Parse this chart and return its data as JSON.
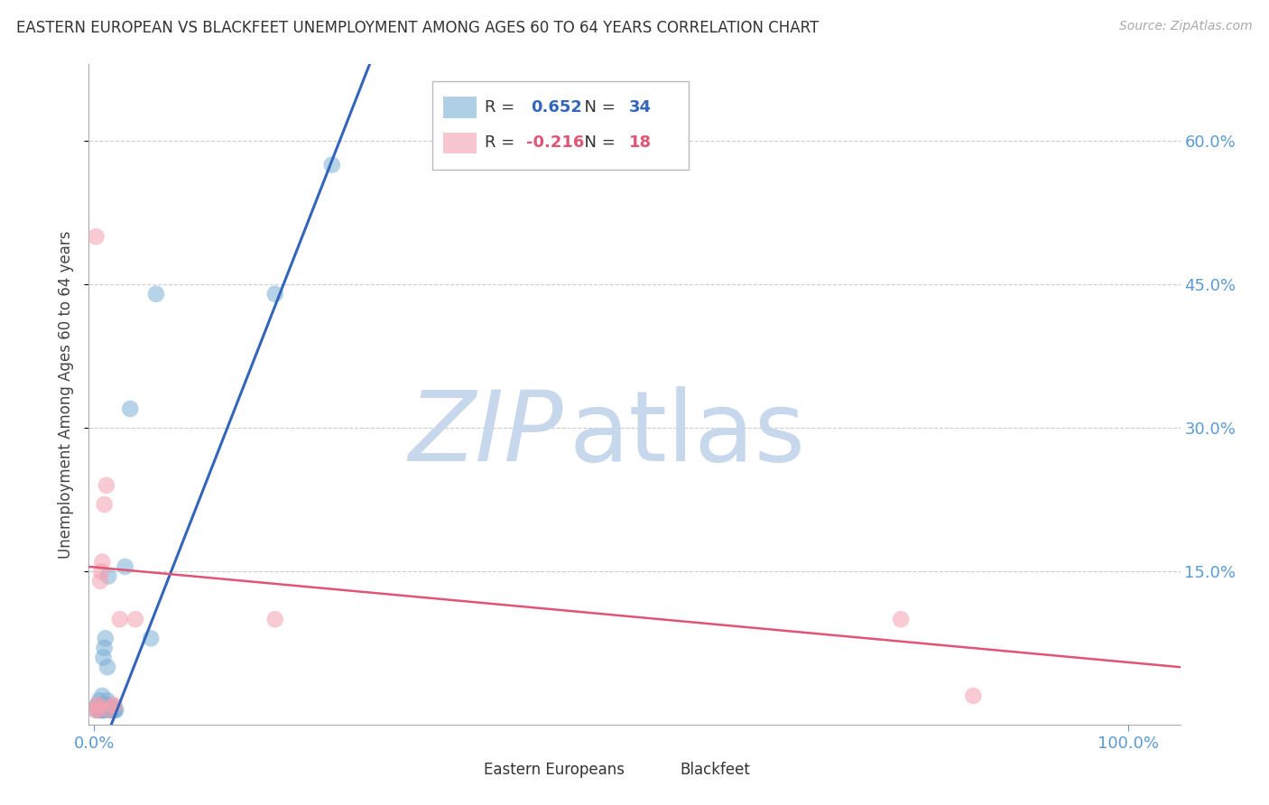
{
  "title": "EASTERN EUROPEAN VS BLACKFEET UNEMPLOYMENT AMONG AGES 60 TO 64 YEARS CORRELATION CHART",
  "source": "Source: ZipAtlas.com",
  "ylabel": "Unemployment Among Ages 60 to 64 years",
  "xlim": [
    -0.005,
    1.05
  ],
  "ylim": [
    -0.01,
    0.68
  ],
  "xticks": [
    0.0,
    1.0
  ],
  "xticklabels": [
    "0.0%",
    "100.0%"
  ],
  "yticks": [
    0.15,
    0.3,
    0.45,
    0.6
  ],
  "yticklabels": [
    "15.0%",
    "30.0%",
    "45.0%",
    "60.0%"
  ],
  "ytick_color": "#5B9BD5",
  "xtick_color": "#5B9BD5",
  "grid_color": "#CCCCCC",
  "background_color": "#FFFFFF",
  "watermark_zip": "ZIP",
  "watermark_atlas": "atlas",
  "watermark_color_zip": "#C8D8EC",
  "watermark_color_atlas": "#C8D8EC",
  "blue_color": "#7BAFD4",
  "blue_line_color": "#3366BB",
  "pink_color": "#F4A0B0",
  "pink_line_color": "#E05575",
  "blue_scatter_x": [
    0.002,
    0.003,
    0.004,
    0.005,
    0.005,
    0.006,
    0.006,
    0.007,
    0.007,
    0.008,
    0.008,
    0.009,
    0.009,
    0.01,
    0.01,
    0.011,
    0.011,
    0.012,
    0.013,
    0.013,
    0.014,
    0.015,
    0.016,
    0.017,
    0.018,
    0.019,
    0.02,
    0.021,
    0.03,
    0.035,
    0.055,
    0.06,
    0.175,
    0.23
  ],
  "blue_scatter_y": [
    0.005,
    0.01,
    0.01,
    0.005,
    0.015,
    0.005,
    0.01,
    0.005,
    0.01,
    0.005,
    0.02,
    0.005,
    0.06,
    0.005,
    0.07,
    0.01,
    0.08,
    0.01,
    0.015,
    0.05,
    0.145,
    0.005,
    0.01,
    0.005,
    0.005,
    0.005,
    0.005,
    0.005,
    0.155,
    0.32,
    0.08,
    0.44,
    0.44,
    0.575
  ],
  "pink_scatter_x": [
    0.002,
    0.003,
    0.004,
    0.005,
    0.006,
    0.007,
    0.008,
    0.01,
    0.012,
    0.015,
    0.018,
    0.02,
    0.025,
    0.04,
    0.175,
    0.78,
    0.85,
    0.002
  ],
  "pink_scatter_y": [
    0.005,
    0.01,
    0.005,
    0.01,
    0.14,
    0.15,
    0.16,
    0.22,
    0.24,
    0.005,
    0.01,
    0.01,
    0.1,
    0.1,
    0.1,
    0.1,
    0.02,
    0.5
  ],
  "blue_line_x": [
    -0.005,
    0.27
  ],
  "blue_line_y": [
    -0.07,
    0.69
  ],
  "pink_line_x": [
    -0.005,
    1.05
  ],
  "pink_line_y": [
    0.155,
    0.05
  ]
}
